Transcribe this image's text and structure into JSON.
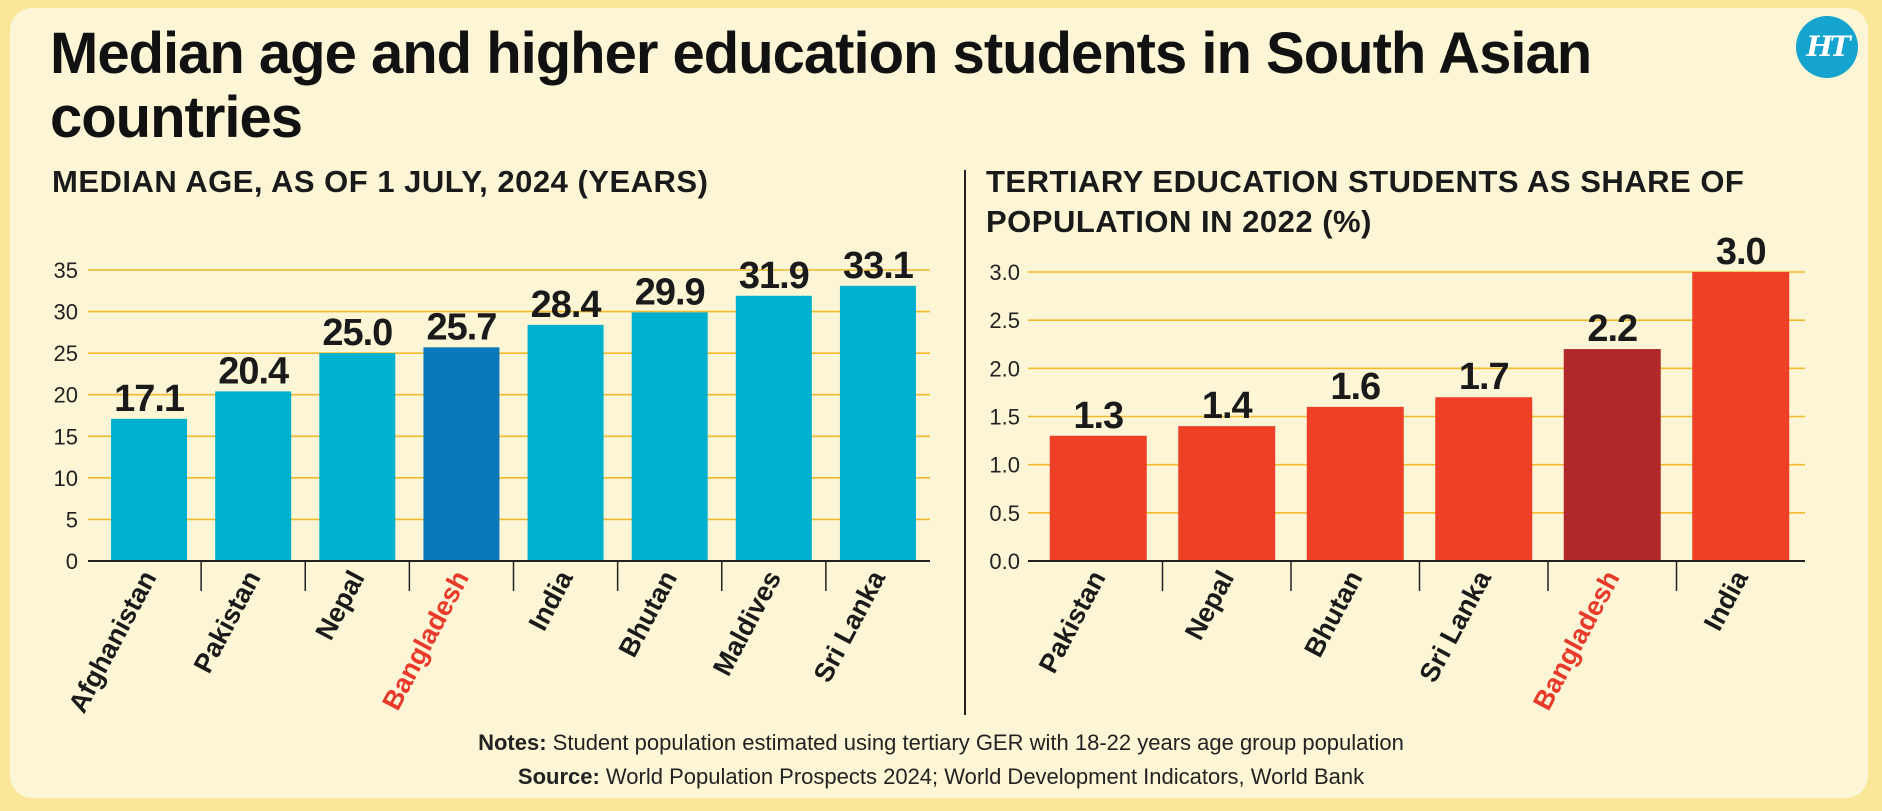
{
  "header": {
    "title": "Median age and higher education students in South Asian countries",
    "logo_text": "HT"
  },
  "colors": {
    "left_bar": "#00b0cf",
    "left_highlight": "#0a78bb",
    "right_bar": "#ee3f27",
    "right_highlight": "#b0282a",
    "highlight_label": "#e8392b",
    "gridline": "#f2b92a"
  },
  "chart_data": [
    {
      "type": "bar",
      "title": "MEDIAN AGE, AS OF 1 JULY, 2024 (YEARS)",
      "categories": [
        "Afghanistan",
        "Pakistan",
        "Nepal",
        "Bangladesh",
        "India",
        "Bhutan",
        "Maldives",
        "Sri Lanka"
      ],
      "values": [
        17.1,
        20.4,
        25.0,
        25.7,
        28.4,
        29.9,
        31.9,
        33.1
      ],
      "value_labels": [
        "17.1",
        "20.4",
        "25.0",
        "25.7",
        "28.4",
        "29.9",
        "31.9",
        "33.1"
      ],
      "highlight": "Bangladesh",
      "ylim": [
        0,
        35
      ],
      "yticks": [
        "0",
        "5",
        "10",
        "15",
        "20",
        "25",
        "30",
        "35"
      ],
      "ytick_values": [
        0,
        5,
        10,
        15,
        20,
        25,
        30,
        35
      ],
      "grid": true,
      "xlabel": "",
      "ylabel": ""
    },
    {
      "type": "bar",
      "title": "TERTIARY EDUCATION STUDENTS AS SHARE OF POPULATION IN 2022 (%)",
      "categories": [
        "Pakistan",
        "Nepal",
        "Bhutan",
        "Sri Lanka",
        "Bangladesh",
        "India"
      ],
      "values": [
        1.3,
        1.4,
        1.6,
        1.7,
        2.2,
        3.0
      ],
      "value_labels": [
        "1.3",
        "1.4",
        "1.6",
        "1.7",
        "2.2",
        "3.0"
      ],
      "highlight": "Bangladesh",
      "ylim": [
        0,
        3.0
      ],
      "yticks": [
        "0.0",
        "0.5",
        "1.0",
        "1.5",
        "2.0",
        "2.5",
        "3.0"
      ],
      "ytick_values": [
        0,
        0.5,
        1.0,
        1.5,
        2.0,
        2.5,
        3.0
      ],
      "grid": true,
      "xlabel": "",
      "ylabel": ""
    }
  ],
  "footer": {
    "notes_label": "Notes:",
    "notes_text": " Student population estimated using tertiary GER with 18-22 years age group population",
    "source_label": "Source:",
    "source_text": " World Population Prospects 2024; World Development Indicators, World Bank"
  }
}
